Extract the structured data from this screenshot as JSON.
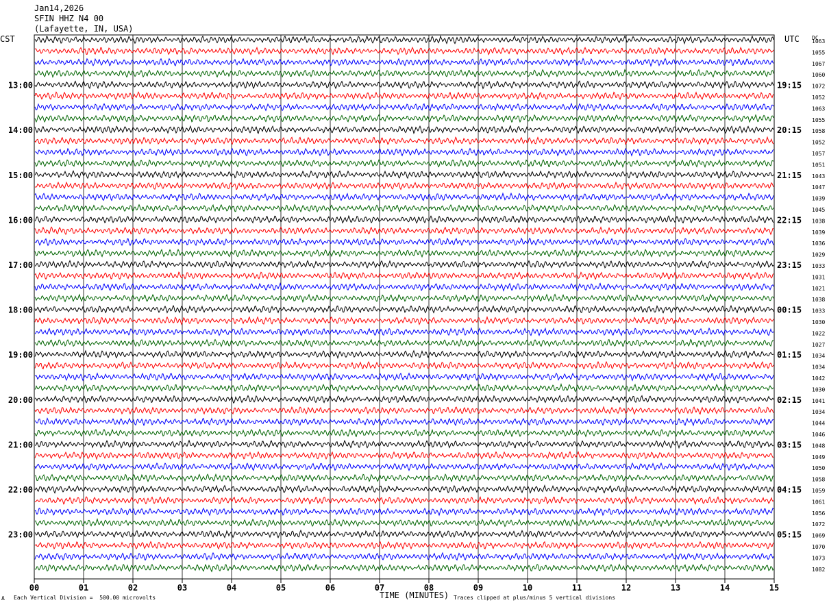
{
  "header": {
    "date": "Jan14,2026",
    "station": "SFIN HHZ N4 00",
    "location": "(Lafayette, IN, USA)"
  },
  "left_axis_title": "CST",
  "right_axis_title": "UTC",
  "dc_label": "DC",
  "footer": {
    "scale_note": "Each Vertical Division =  500.00 microvolts",
    "xlabel": "TIME (MINUTES)",
    "clip_note": "Traces clipped at plus/minus 5 vertical divisions",
    "corner_mark": "A"
  },
  "colors": {
    "black": "#000000",
    "red": "#ff0000",
    "blue": "#0000ff",
    "green": "#006400"
  },
  "chart_data": {
    "type": "line",
    "title": "SFIN HHZ N4 00",
    "xlabel": "TIME (MINUTES)",
    "xlim": [
      0,
      15
    ],
    "x_ticks": [
      "00",
      "01",
      "02",
      "03",
      "04",
      "05",
      "06",
      "07",
      "08",
      "09",
      "10",
      "11",
      "12",
      "13",
      "14",
      "15"
    ],
    "trace_colors": [
      "#000000",
      "#ff0000",
      "#0000ff",
      "#006400"
    ],
    "left_hour_labels": [
      "13:00",
      "14:00",
      "15:00",
      "16:00",
      "17:00",
      "18:00",
      "19:00",
      "20:00",
      "21:00",
      "22:00",
      "23:00"
    ],
    "right_hour_labels": [
      "19:15",
      "20:15",
      "21:15",
      "22:15",
      "23:15",
      "00:15",
      "01:15",
      "02:15",
      "03:15",
      "04:15",
      "05:15"
    ],
    "dc_offsets": [
      1063,
      1055,
      1067,
      1060,
      1072,
      1052,
      1063,
      1055,
      1058,
      1052,
      1057,
      1051,
      1043,
      1047,
      1039,
      1045,
      1038,
      1039,
      1036,
      1029,
      1033,
      1031,
      1021,
      1038,
      1033,
      1030,
      1022,
      1027,
      1034,
      1034,
      1042,
      1030,
      1041,
      1034,
      1044,
      1046,
      1048,
      1049,
      1050,
      1058,
      1059,
      1061,
      1056,
      1072,
      1069,
      1070,
      1073,
      1082
    ]
  }
}
